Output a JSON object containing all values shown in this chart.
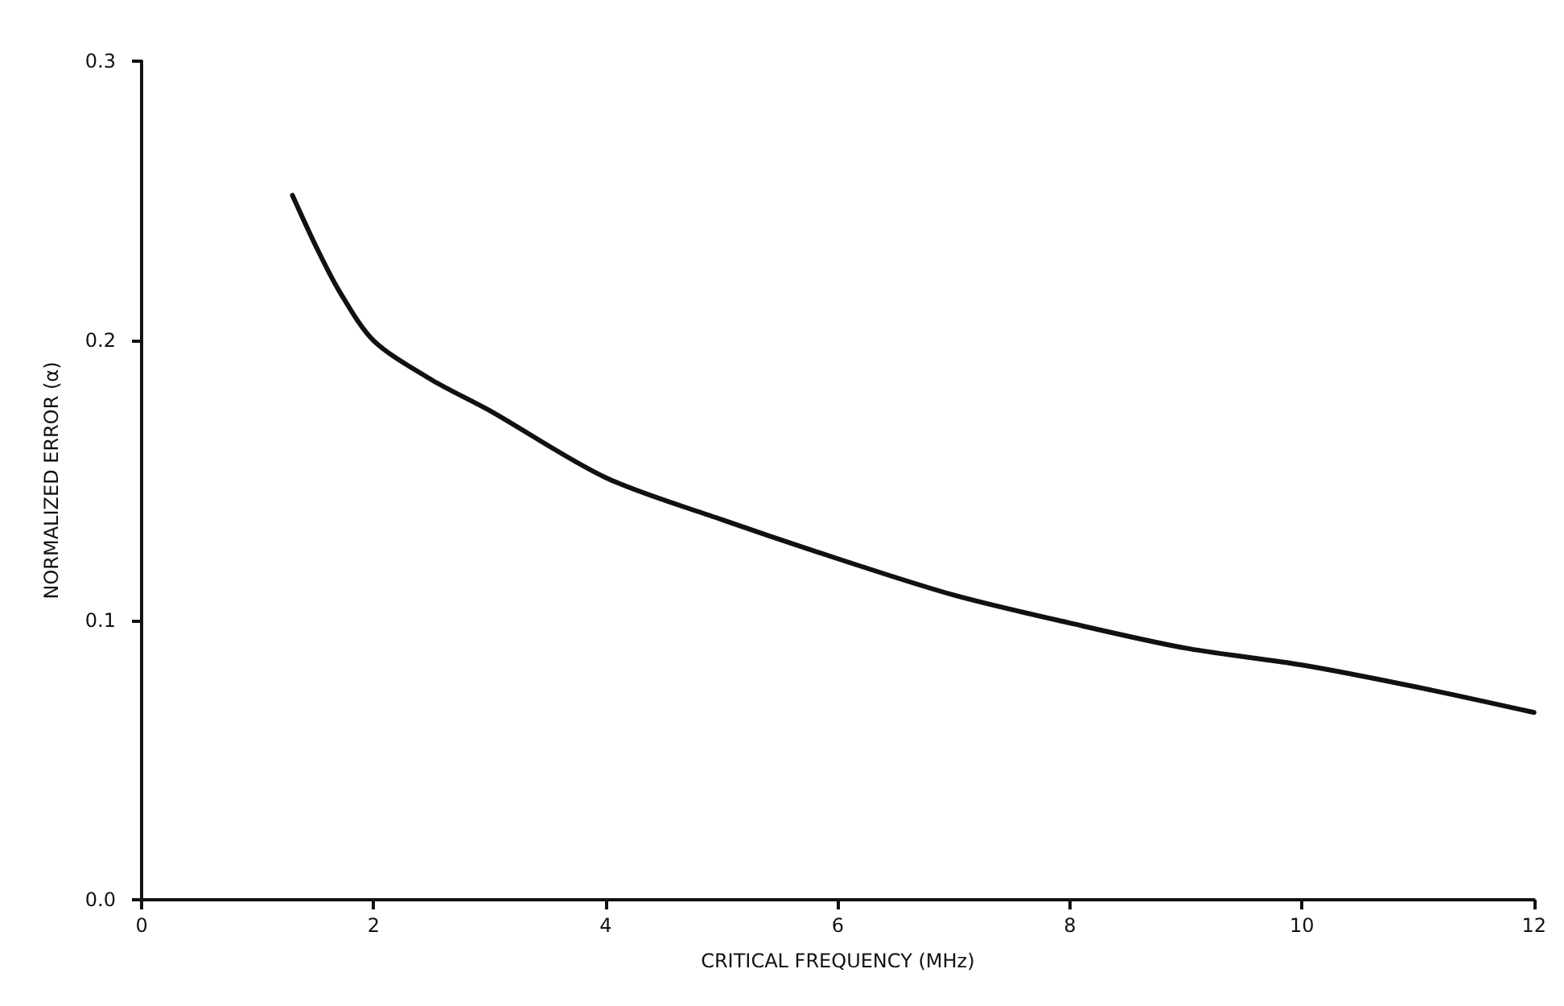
{
  "chart_data": {
    "type": "line",
    "xlabel": "CRITICAL FREQUENCY (MHz)",
    "ylabel": "NORMALIZED ERROR (α)",
    "x": [
      1.3,
      1.5,
      1.7,
      2,
      2.5,
      3,
      4,
      5,
      6,
      7,
      8,
      9,
      10,
      11,
      12
    ],
    "series": [
      {
        "color": "#111111",
        "values": [
          0.252,
          0.234,
          0.218,
          0.2,
          0.186,
          0.175,
          0.151,
          0.136,
          0.122,
          0.109,
          0.099,
          0.09,
          0.084,
          0.076,
          0.067
        ]
      }
    ],
    "xlim": [
      0,
      12
    ],
    "xticks": [
      0,
      2,
      4,
      6,
      8,
      10,
      12
    ],
    "ylim": [
      0,
      0.3
    ],
    "yticks": [
      {
        "value": 0,
        "label": "0.0"
      },
      0.1,
      0.2,
      0.3
    ],
    "grid": false,
    "marker": "none",
    "line_style": "solid"
  }
}
